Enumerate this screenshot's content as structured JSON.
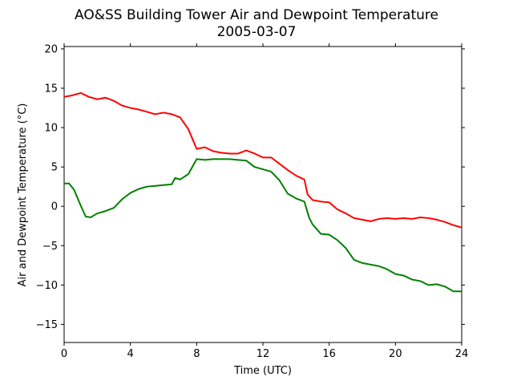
{
  "chart_data": {
    "type": "line",
    "title": "AO&SS Building Tower Air and Dewpoint Temperature",
    "subtitle": "2005-03-07",
    "xlabel": "Time (UTC)",
    "ylabel": "Air and Dewpoint Temperature (°C)",
    "xlim": [
      0,
      24
    ],
    "ylim": [
      -17.3,
      20.3
    ],
    "xticks": [
      0,
      4,
      8,
      12,
      16,
      20,
      24
    ],
    "yticks": [
      -15,
      -10,
      -5,
      0,
      5,
      10,
      15,
      20
    ],
    "grid": false,
    "series": [
      {
        "color": "#ff0000",
        "x": [
          0,
          0.5,
          1,
          1.5,
          2,
          2.5,
          3,
          3.5,
          4,
          4.5,
          5,
          5.5,
          6,
          6.5,
          7,
          7.5,
          8,
          8.5,
          9,
          9.5,
          10,
          10.5,
          11,
          11.5,
          12,
          12.5,
          13,
          13.5,
          14,
          14.5,
          14.7,
          15,
          15.5,
          16,
          16.5,
          17,
          17.5,
          18,
          18.5,
          19,
          19.5,
          20,
          20.5,
          21,
          21.5,
          22,
          22.5,
          23,
          23.5,
          24
        ],
        "values": [
          13.9,
          14.1,
          14.4,
          13.9,
          13.6,
          13.8,
          13.4,
          12.8,
          12.5,
          12.3,
          12.0,
          11.7,
          11.9,
          11.7,
          11.3,
          9.8,
          7.3,
          7.5,
          7.0,
          6.8,
          6.7,
          6.7,
          7.1,
          6.7,
          6.2,
          6.2,
          5.4,
          4.6,
          3.9,
          3.4,
          1.5,
          0.8,
          0.6,
          0.5,
          -0.4,
          -0.9,
          -1.5,
          -1.7,
          -1.9,
          -1.6,
          -1.5,
          -1.6,
          -1.5,
          -1.6,
          -1.4,
          -1.5,
          -1.7,
          -2.0,
          -2.4,
          -2.7
        ]
      },
      {
        "color": "#008000",
        "x": [
          0,
          0.3,
          0.6,
          1,
          1.3,
          1.6,
          2,
          2.5,
          3,
          3.5,
          4,
          4.5,
          5,
          5.5,
          6,
          6.5,
          6.7,
          7,
          7.5,
          8,
          8.5,
          9,
          9.5,
          10,
          10.5,
          11,
          11.5,
          12,
          12.5,
          13,
          13.5,
          14,
          14.5,
          14.8,
          15,
          15.5,
          16,
          16.5,
          17,
          17.5,
          18,
          18.5,
          19,
          19.5,
          20,
          20.5,
          21,
          21.5,
          22,
          22.5,
          23,
          23.5,
          24
        ],
        "values": [
          2.9,
          2.9,
          2.1,
          0.1,
          -1.3,
          -1.4,
          -0.9,
          -0.6,
          -0.2,
          0.9,
          1.7,
          2.2,
          2.5,
          2.6,
          2.7,
          2.8,
          3.6,
          3.4,
          4.1,
          6.0,
          5.9,
          6.0,
          6.0,
          6.0,
          5.9,
          5.8,
          5.0,
          4.7,
          4.4,
          3.3,
          1.6,
          1.0,
          0.6,
          -1.5,
          -2.3,
          -3.5,
          -3.6,
          -4.3,
          -5.3,
          -6.8,
          -7.2,
          -7.4,
          -7.6,
          -8.0,
          -8.6,
          -8.8,
          -9.3,
          -9.5,
          -10.0,
          -9.9,
          -10.2,
          -10.8,
          -10.8
        ]
      }
    ]
  }
}
